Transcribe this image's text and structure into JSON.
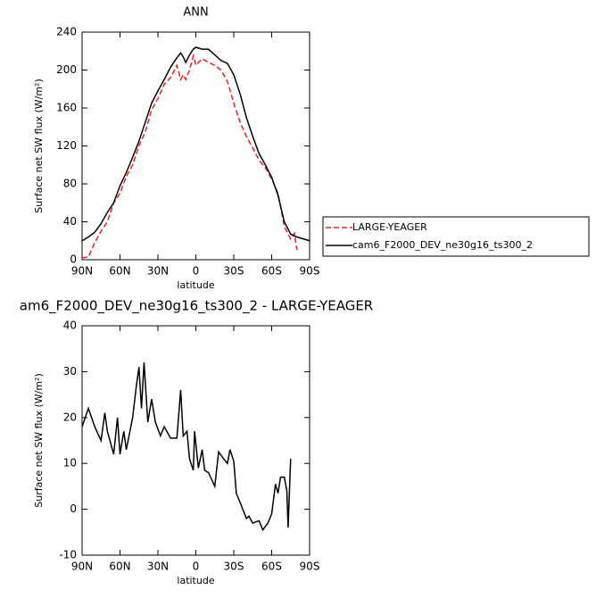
{
  "chart_data": [
    {
      "type": "line",
      "title": "ANN",
      "xlabel": "latitude",
      "ylabel": "Surface net SW flux (W/m²)",
      "x": [
        90,
        85,
        80,
        75,
        70,
        65,
        60,
        55,
        50,
        45,
        40,
        35,
        30,
        25,
        20,
        15,
        12,
        10,
        8,
        5,
        2,
        0,
        -5,
        -10,
        -15,
        -20,
        -25,
        -30,
        -35,
        -40,
        -45,
        -50,
        -55,
        -60,
        -65,
        -70,
        -75,
        -78,
        -80,
        -85,
        -90
      ],
      "series": [
        {
          "name": "LARGE-YEAGER",
          "color": "#e8261e",
          "linestyle": "dashed",
          "values": [
            2,
            3,
            18,
            30,
            40,
            60,
            70,
            88,
            100,
            120,
            135,
            158,
            170,
            185,
            192,
            205,
            190,
            195,
            190,
            200,
            215,
            205,
            212,
            208,
            205,
            200,
            188,
            165,
            145,
            130,
            118,
            105,
            97,
            85,
            70,
            35,
            22,
            28,
            10,
            null,
            null
          ]
        },
        {
          "name": "cam6_F2000_DEV_ne30g16_ts300_2",
          "color": "#000000",
          "linestyle": "solid",
          "values": [
            20,
            24,
            29,
            38,
            50,
            60,
            78,
            92,
            108,
            125,
            145,
            165,
            178,
            190,
            203,
            213,
            218,
            214,
            208,
            216,
            222,
            224,
            222,
            222,
            216,
            210,
            207,
            195,
            175,
            150,
            130,
            112,
            100,
            87,
            68,
            40,
            27,
            25,
            24,
            22,
            20
          ]
        }
      ],
      "xlim": [
        90,
        -90
      ],
      "xticks": [
        {
          "value": 90,
          "label": "90N"
        },
        {
          "value": 60,
          "label": "60N"
        },
        {
          "value": 30,
          "label": "30N"
        },
        0,
        {
          "value": -30,
          "label": "30S"
        },
        {
          "value": -60,
          "label": "60S"
        },
        {
          "value": -90,
          "label": "90S"
        }
      ],
      "ylim": [
        0,
        240
      ],
      "yticks": [
        0,
        40,
        80,
        120,
        160,
        200,
        240
      ]
    },
    {
      "type": "line",
      "title": "am6_F2000_DEV_ne30g16_ts300_2 - LARGE-YEAGER",
      "xlabel": "latitude",
      "ylabel": "Surface net SW flux (W/m²)",
      "x": [
        90,
        85,
        80,
        75,
        72,
        70,
        65,
        62,
        60,
        57,
        55,
        50,
        47,
        45,
        43,
        41,
        38,
        35,
        32,
        28,
        25,
        20,
        15,
        12,
        10,
        7,
        5,
        2,
        1,
        -2,
        -5,
        -7,
        -10,
        -15,
        -18,
        -22,
        -25,
        -27,
        -30,
        -32,
        -35,
        -40,
        -42,
        -45,
        -50,
        -53,
        -57,
        -60,
        -63,
        -65,
        -67,
        -70,
        -72,
        -73,
        -75
      ],
      "series": [
        {
          "name": "cam6_F2000_DEV_ne30g16_ts300_2 - LARGE-YEAGER",
          "color": "#000000",
          "linestyle": "solid",
          "values": [
            18,
            22,
            18,
            15,
            21,
            17,
            12,
            20,
            12,
            17,
            13,
            20,
            27,
            31,
            22,
            32,
            19,
            24,
            19,
            16,
            18,
            15.5,
            15.5,
            26,
            16,
            17,
            11,
            8.5,
            17,
            9,
            13,
            8.5,
            8,
            5,
            12.5,
            11,
            10,
            13,
            10.5,
            3.5,
            1.5,
            -2,
            -1.5,
            -3,
            -2.5,
            -4.5,
            -3,
            -1,
            5.5,
            3.5,
            7,
            7,
            4,
            -4,
            11
          ]
        }
      ],
      "xlim": [
        90,
        -90
      ],
      "xticks": [
        {
          "value": 90,
          "label": "90N"
        },
        {
          "value": 60,
          "label": "60N"
        },
        {
          "value": 30,
          "label": "30N"
        },
        0,
        {
          "value": -30,
          "label": "30S"
        },
        {
          "value": -60,
          "label": "60S"
        },
        {
          "value": -90,
          "label": "90S"
        }
      ],
      "ylim": [
        -10,
        40
      ],
      "yticks": [
        -10,
        0,
        10,
        20,
        30,
        40
      ]
    }
  ]
}
